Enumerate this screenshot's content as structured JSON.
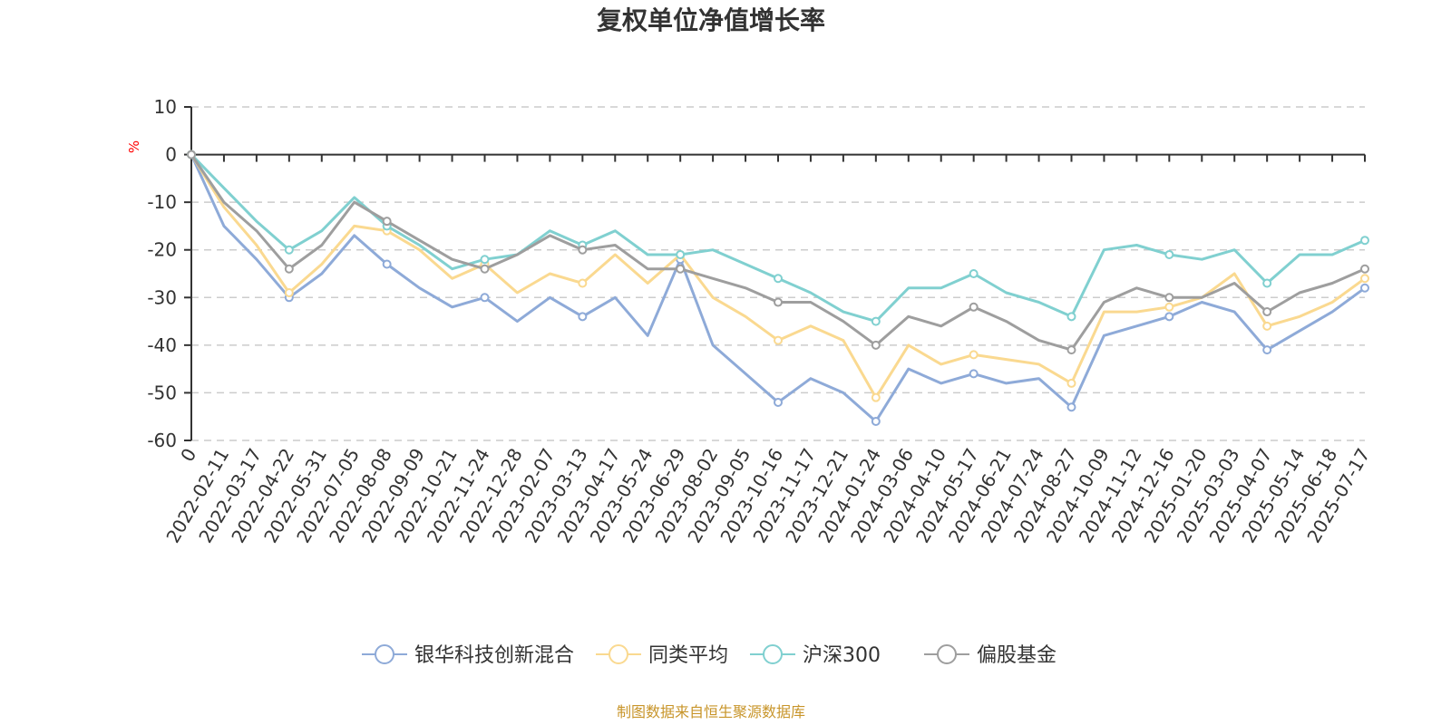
{
  "chart_data": {
    "type": "line",
    "title": "复权单位净值增长率",
    "ylabel": "%",
    "ylim": [
      -60,
      10
    ],
    "yticks": [
      10,
      0,
      -10,
      -20,
      -30,
      -40,
      -50,
      -60
    ],
    "grid": true,
    "legend_position": "bottom",
    "x_labels": [
      "0",
      "2022-02-11",
      "2022-03-17",
      "2022-04-22",
      "2022-05-31",
      "2022-07-05",
      "2022-08-08",
      "2022-09-09",
      "2022-10-21",
      "2022-11-24",
      "2022-12-28",
      "2023-02-07",
      "2023-03-13",
      "2023-04-17",
      "2023-05-24",
      "2023-06-29",
      "2023-08-02",
      "2023-09-05",
      "2023-10-16",
      "2023-11-17",
      "2023-12-21",
      "2024-01-24",
      "2024-03-06",
      "2024-04-10",
      "2024-05-17",
      "2024-06-21",
      "2024-07-24",
      "2024-08-27",
      "2024-10-09",
      "2024-11-12",
      "2024-12-16",
      "2025-01-20",
      "2025-03-03",
      "2025-04-07",
      "2025-05-14",
      "2025-06-18",
      "2025-07-17"
    ],
    "series": [
      {
        "name": "银华科技创新混合",
        "color": "#8eaad8",
        "values": [
          0,
          -15,
          -22,
          -30,
          -25,
          -17,
          -23,
          -28,
          -32,
          -30,
          -35,
          -30,
          -34,
          -30,
          -38,
          -22,
          -40,
          -46,
          -52,
          -47,
          -50,
          -56,
          -45,
          -48,
          -46,
          -48,
          -47,
          -53,
          -38,
          -36,
          -34,
          -31,
          -33,
          -41,
          -37,
          -33,
          -28
        ]
      },
      {
        "name": "同类平均",
        "color": "#fad990",
        "values": [
          0,
          -11,
          -19,
          -29,
          -23,
          -15,
          -16,
          -20,
          -26,
          -23,
          -29,
          -25,
          -27,
          -21,
          -27,
          -21,
          -30,
          -34,
          -39,
          -36,
          -39,
          -51,
          -40,
          -44,
          -42,
          -43,
          -44,
          -48,
          -33,
          -33,
          -32,
          -30,
          -25,
          -36,
          -34,
          -31,
          -26
        ]
      },
      {
        "name": "沪深300",
        "color": "#80d0d0",
        "values": [
          0,
          -7,
          -14,
          -20,
          -16,
          -9,
          -15,
          -19,
          -24,
          -22,
          -21,
          -16,
          -19,
          -16,
          -21,
          -21,
          -20,
          -23,
          -26,
          -29,
          -33,
          -35,
          -28,
          -28,
          -25,
          -29,
          -31,
          -34,
          -20,
          -19,
          -21,
          -22,
          -20,
          -27,
          -21,
          -21,
          -18
        ]
      },
      {
        "name": "偏股基金",
        "color": "#9e9e9e",
        "values": [
          0,
          -10,
          -16,
          -24,
          -19,
          -10,
          -14,
          -18,
          -22,
          -24,
          -21,
          -17,
          -20,
          -19,
          -24,
          -24,
          -26,
          -28,
          -31,
          -31,
          -35,
          -40,
          -34,
          -36,
          -32,
          -35,
          -39,
          -41,
          -31,
          -28,
          -30,
          -30,
          -27,
          -33,
          -29,
          -27,
          -24
        ]
      }
    ]
  },
  "source_note": "制图数据来自恒生聚源数据库"
}
